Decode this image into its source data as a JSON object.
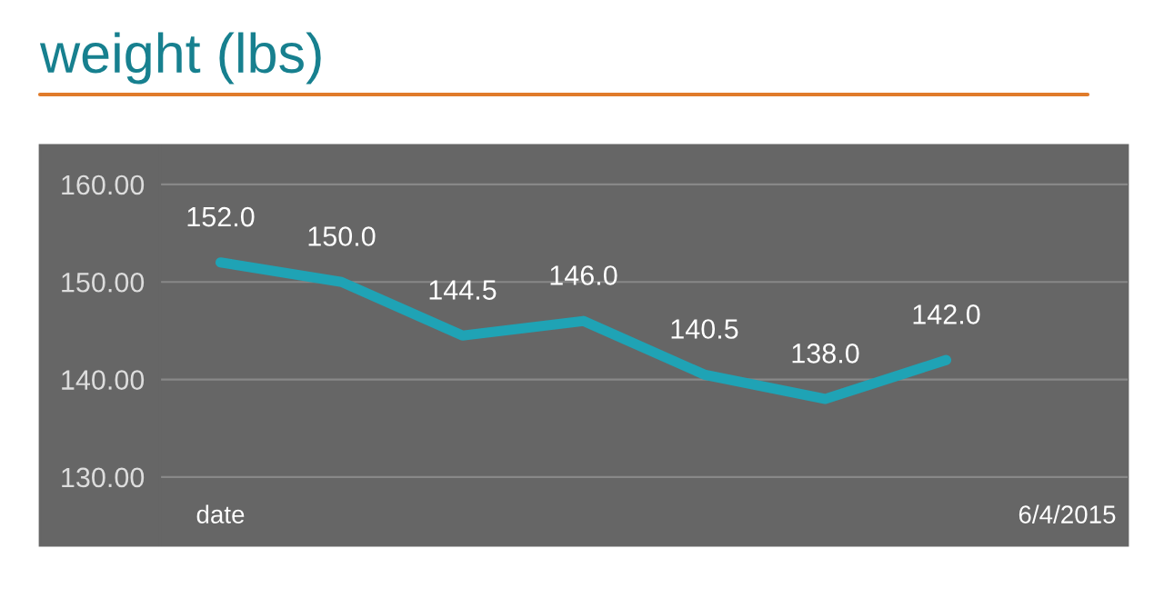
{
  "chart_data": {
    "type": "line",
    "title": "weight (lbs)",
    "categories": [
      "date",
      null,
      null,
      null,
      null,
      null,
      null,
      "6/4/2015"
    ],
    "series": [
      {
        "color": "#1fa3b5",
        "values": [
          152.0,
          150.0,
          144.5,
          146.0,
          140.5,
          138.0,
          142.0,
          null
        ],
        "value_labels": [
          "152.0",
          "150.0",
          "144.5",
          "146.0",
          "140.5",
          "138.0",
          "142.0",
          null
        ]
      }
    ],
    "ylim": [
      123,
      164
    ],
    "yticks": [
      {
        "value": 130,
        "label": "130.00"
      },
      {
        "value": 140,
        "label": "140.00"
      },
      {
        "value": 150,
        "label": "150.00"
      },
      {
        "value": 160,
        "label": "160.00"
      }
    ],
    "grid": "y",
    "legend": false,
    "marker": "none",
    "line_style": "solid"
  }
}
